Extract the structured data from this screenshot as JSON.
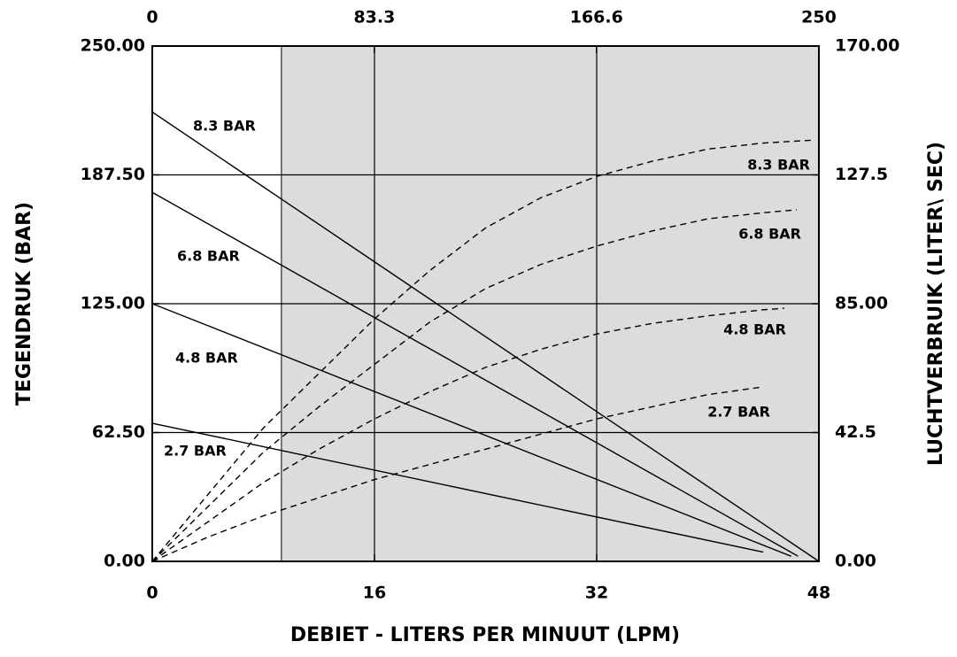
{
  "chart_data": {
    "type": "line",
    "xlabel": "DEBIET - LITERS PER MINUUT (LPM)",
    "ylabel": "TEGENDRUK (BAR)",
    "y2label": "LUCHTVERBRUIK (LITER\\ SEC)",
    "xlim": [
      0,
      48
    ],
    "xticks": [
      0,
      16,
      32,
      48
    ],
    "x2lim": [
      0,
      250
    ],
    "x2ticks": [
      0,
      83.3,
      166.6,
      250
    ],
    "ylim": [
      0,
      250
    ],
    "yticks": [
      {
        "value": 0,
        "label": "0.00"
      },
      {
        "value": 62.5,
        "label": "62.50"
      },
      {
        "value": 125,
        "label": "125.00"
      },
      {
        "value": 187.5,
        "label": "187.50"
      },
      {
        "value": 250,
        "label": "250.00"
      }
    ],
    "y2lim": [
      0,
      170
    ],
    "y2ticks": [
      {
        "value": 0,
        "label": "0.00"
      },
      42.5,
      {
        "value": 85,
        "label": "85.00"
      },
      127.5,
      {
        "value": 170,
        "label": "170.00"
      }
    ],
    "grid": true,
    "shaded_region": [
      9.3,
      48
    ],
    "shade_color": "#dcdcdc",
    "series": [
      {
        "name": "8.3 BAR",
        "axis": "y",
        "style": "solid",
        "color": "#000000",
        "x": [
          0,
          48
        ],
        "values": [
          218,
          0
        ]
      },
      {
        "name": "6.8 BAR",
        "axis": "y",
        "style": "solid",
        "color": "#000000",
        "x": [
          0,
          46.5
        ],
        "values": [
          179,
          2.5
        ]
      },
      {
        "name": "4.8 BAR",
        "axis": "y",
        "style": "solid",
        "color": "#000000",
        "x": [
          0,
          46
        ],
        "values": [
          125,
          2.5
        ]
      },
      {
        "name": "2.7 BAR",
        "axis": "y",
        "style": "solid",
        "color": "#000000",
        "x": [
          0,
          44
        ],
        "values": [
          67,
          4.5
        ]
      },
      {
        "name": "8.3 BAR",
        "axis": "y2",
        "style": "dashed",
        "color": "#000000",
        "x": [
          0,
          4,
          8,
          12,
          16,
          20,
          24,
          28,
          32,
          36,
          40,
          44,
          47.7
        ],
        "values": [
          0,
          22,
          44,
          62,
          80,
          96,
          110,
          120,
          127,
          132,
          136,
          138,
          139
        ]
      },
      {
        "name": "6.8 BAR",
        "axis": "y2",
        "style": "dashed",
        "color": "#000000",
        "x": [
          0,
          4,
          8,
          12,
          16,
          20,
          24,
          28,
          32,
          36,
          40,
          44,
          46.4
        ],
        "values": [
          0,
          18,
          36,
          51,
          65,
          79,
          90,
          98,
          104,
          109,
          113,
          115,
          116
        ]
      },
      {
        "name": "4.8 BAR",
        "axis": "y2",
        "style": "dashed",
        "color": "#000000",
        "x": [
          0,
          4,
          8,
          12,
          16,
          20,
          24,
          28,
          32,
          36,
          40,
          44,
          45.5
        ],
        "values": [
          0,
          13,
          26,
          37,
          47,
          56,
          64,
          70,
          75,
          78.5,
          81,
          83,
          83.5
        ]
      },
      {
        "name": "2.7 BAR",
        "axis": "y2",
        "style": "dashed",
        "color": "#000000",
        "x": [
          0,
          4,
          8,
          12,
          16,
          20,
          24,
          28,
          32,
          36,
          40,
          43.9
        ],
        "values": [
          0,
          8,
          15,
          21,
          27,
          32,
          37,
          42,
          47,
          51,
          55,
          57.5
        ]
      }
    ]
  }
}
